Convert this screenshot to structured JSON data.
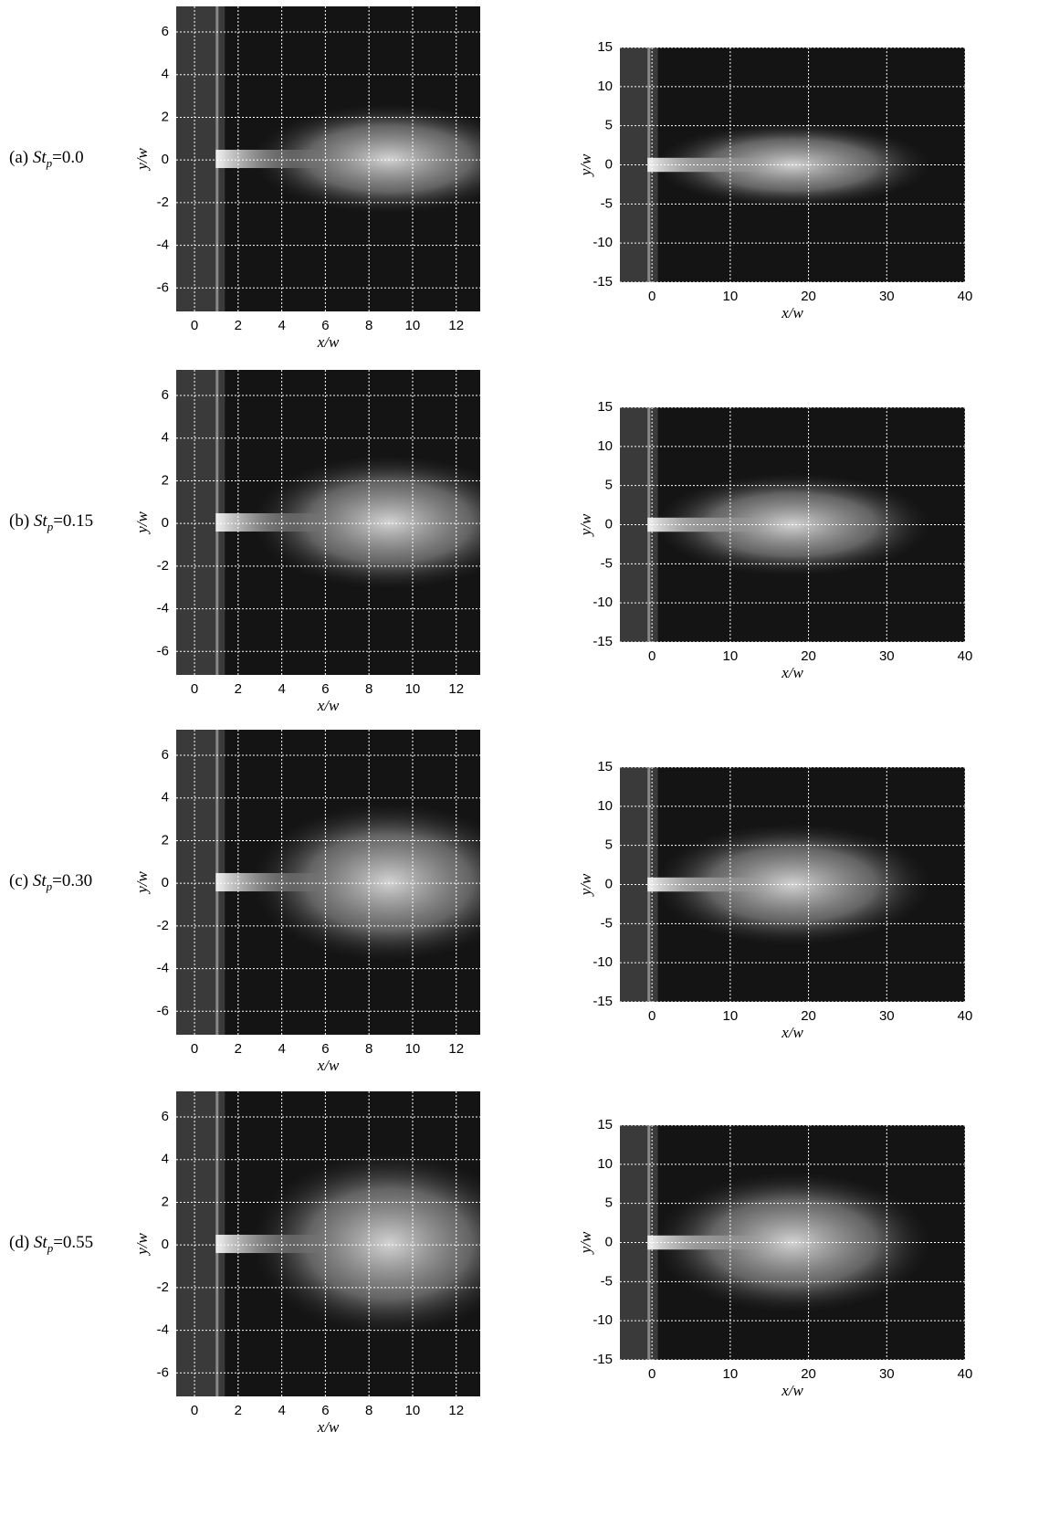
{
  "chart_data": [
    {
      "type": "image",
      "panel_label": {
        "prefix": "(a) ",
        "symbol": "St",
        "subscript": "p",
        "suffix": "=0.0"
      },
      "xlabel": "x/w",
      "ylabel": "y/w",
      "xlim": [
        -0.84,
        13.1
      ],
      "ylim": [
        -7.1,
        7.2
      ],
      "xticks": [
        0,
        2,
        4,
        6,
        8,
        10,
        12
      ],
      "yticks": [
        -6,
        -4,
        -2,
        0,
        2,
        4,
        6
      ],
      "grid": true
    },
    {
      "type": "image",
      "xlabel": "x/w",
      "ylabel": "y/w",
      "xlim": [
        -4.1,
        40
      ],
      "ylim": [
        -15,
        15
      ],
      "xticks": [
        0,
        10,
        20,
        30,
        40
      ],
      "yticks": [
        -15,
        -10,
        -5,
        0,
        5,
        10,
        15
      ],
      "grid": true
    },
    {
      "type": "image",
      "panel_label": {
        "prefix": "(b) ",
        "symbol": "St",
        "subscript": "p",
        "suffix": "=0.15"
      },
      "xlabel": "x/w",
      "ylabel": "y/w",
      "xlim": [
        -0.84,
        13.1
      ],
      "ylim": [
        -7.1,
        7.2
      ],
      "xticks": [
        0,
        2,
        4,
        6,
        8,
        10,
        12
      ],
      "yticks": [
        -6,
        -4,
        -2,
        0,
        2,
        4,
        6
      ],
      "grid": true
    },
    {
      "type": "image",
      "xlabel": "x/w",
      "ylabel": "y/w",
      "xlim": [
        -4.1,
        40
      ],
      "ylim": [
        -15,
        15
      ],
      "xticks": [
        0,
        10,
        20,
        30,
        40
      ],
      "yticks": [
        -15,
        -10,
        -5,
        0,
        5,
        10,
        15
      ],
      "grid": true
    },
    {
      "type": "image",
      "panel_label": {
        "prefix": "(c) ",
        "symbol": "St",
        "subscript": "p",
        "suffix": "=0.30"
      },
      "xlabel": "x/w",
      "ylabel": "y/w",
      "xlim": [
        -0.84,
        13.1
      ],
      "ylim": [
        -7.1,
        7.2
      ],
      "xticks": [
        0,
        2,
        4,
        6,
        8,
        10,
        12
      ],
      "yticks": [
        -6,
        -4,
        -2,
        0,
        2,
        4,
        6
      ],
      "grid": true
    },
    {
      "type": "image",
      "xlabel": "x/w",
      "ylabel": "y/w",
      "xlim": [
        -4.1,
        40
      ],
      "ylim": [
        -15,
        15
      ],
      "xticks": [
        0,
        10,
        20,
        30,
        40
      ],
      "yticks": [
        -15,
        -10,
        -5,
        0,
        5,
        10,
        15
      ],
      "grid": true
    },
    {
      "type": "image",
      "panel_label": {
        "prefix": "(d) ",
        "symbol": "St",
        "subscript": "p",
        "suffix": "=0.55"
      },
      "xlabel": "x/w",
      "ylabel": "y/w",
      "xlim": [
        -0.84,
        13.1
      ],
      "ylim": [
        -7.1,
        7.2
      ],
      "xticks": [
        0,
        2,
        4,
        6,
        8,
        10,
        12
      ],
      "yticks": [
        -6,
        -4,
        -2,
        0,
        2,
        4,
        6
      ],
      "grid": true
    },
    {
      "type": "image",
      "xlabel": "x/w",
      "ylabel": "y/w",
      "xlim": [
        -4.1,
        40
      ],
      "ylim": [
        -15,
        15
      ],
      "xticks": [
        0,
        10,
        20,
        30,
        40
      ],
      "yticks": [
        -15,
        -10,
        -5,
        0,
        5,
        10,
        15
      ],
      "grid": true
    }
  ]
}
